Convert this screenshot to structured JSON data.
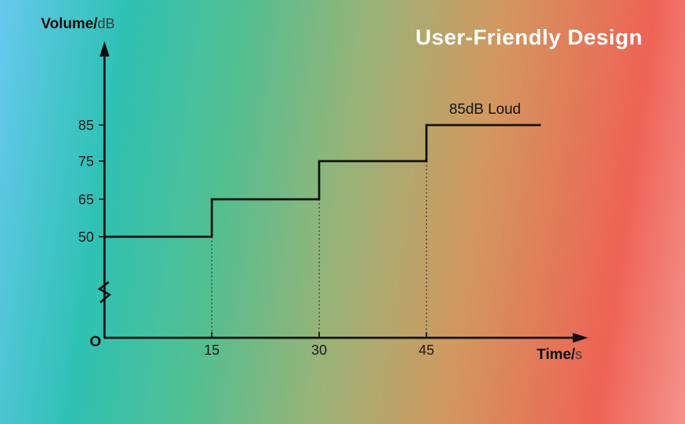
{
  "chart_data": {
    "type": "line",
    "subtype": "step",
    "title": "User-Friendly Design",
    "y_axis_label": {
      "main": "Volume/",
      "unit": "dB"
    },
    "x_axis_label": {
      "main": "Time/",
      "unit": "s"
    },
    "origin_label": "O",
    "annotation": "85dB Loud",
    "yticks": [
      50,
      65,
      75,
      85
    ],
    "xticks": [
      15,
      30,
      45
    ],
    "segments": [
      {
        "t_start": 0,
        "t_end": 15,
        "volume_db": 50
      },
      {
        "t_start": 15,
        "t_end": 30,
        "volume_db": 65
      },
      {
        "t_start": 30,
        "t_end": 45,
        "volume_db": 75
      },
      {
        "t_start": 45,
        "t_end": 61,
        "volume_db": 85
      }
    ],
    "axis_break_on_y": true,
    "ylim_shown": [
      50,
      85
    ],
    "xlim_shown": [
      0,
      61
    ],
    "grid": "off",
    "legend": "none",
    "colors": {
      "line": "#111111",
      "title": "#ffffff",
      "text": "#1a1a1a",
      "background_stops": [
        "#66c9ee",
        "#2fc1b4",
        "#52bf92",
        "#99b377",
        "#d3975f",
        "#ee6355",
        "#f4938c"
      ]
    }
  }
}
